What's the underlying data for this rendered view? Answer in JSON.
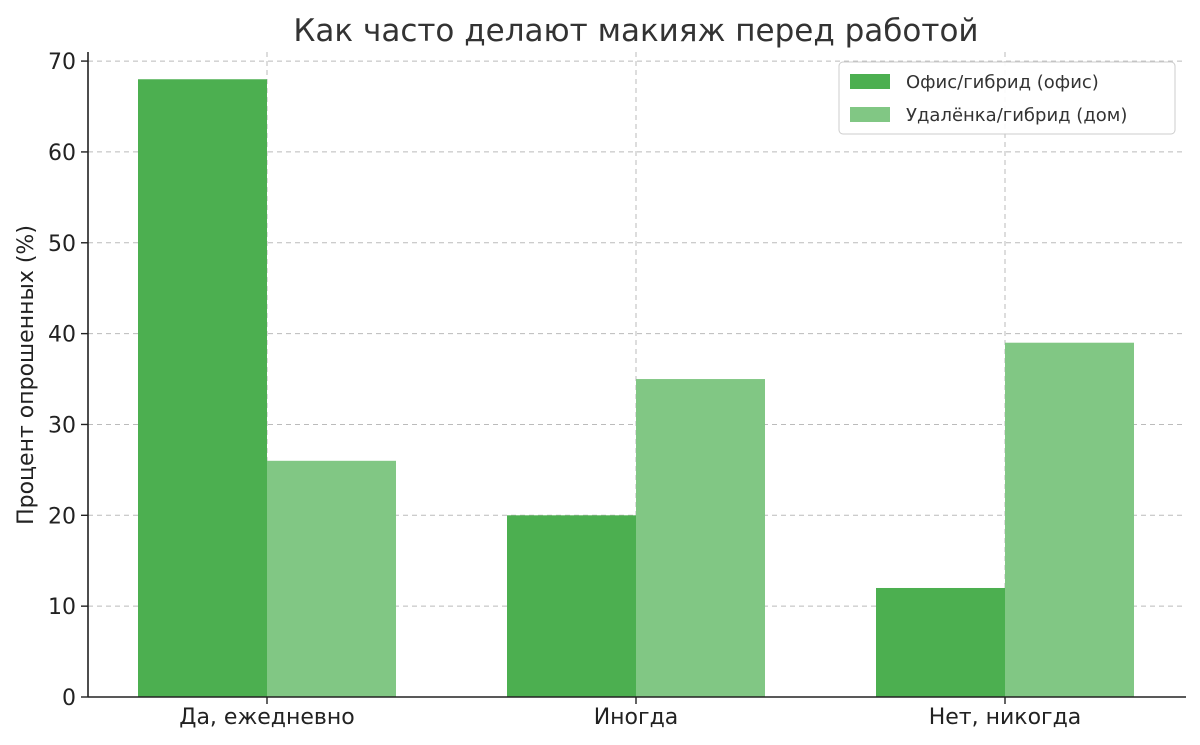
{
  "chart_data": {
    "type": "bar",
    "title": "Как часто делают макияж перед работой",
    "xlabel": "",
    "ylabel": "Процент опрошенных (%)",
    "categories": [
      "Да, ежедневно",
      "Иногда",
      "Нет, никогда"
    ],
    "series": [
      {
        "name": "Офис/гибрид (офис)",
        "values": [
          68,
          20,
          12
        ],
        "color": "#4caf50"
      },
      {
        "name": "Удалёнка/гибрид (дом)",
        "values": [
          26,
          35,
          39
        ],
        "color": "#81c784"
      }
    ],
    "ylim": [
      0,
      71
    ],
    "yticks": [
      0,
      10,
      20,
      30,
      40,
      50,
      60,
      70
    ],
    "grid": true,
    "legend_position": "top-right"
  }
}
